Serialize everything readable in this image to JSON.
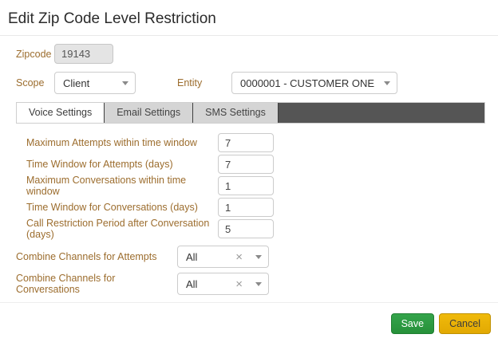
{
  "window": {
    "title": "Edit Zip Code Level Restriction"
  },
  "identity": {
    "zipcode": {
      "label": "Zipcode",
      "value": "19143"
    },
    "scope": {
      "label": "Scope",
      "value": "Client"
    },
    "entity": {
      "label": "Entity",
      "value": "0000001 - CUSTOMER ONE"
    }
  },
  "tabs": {
    "voice": {
      "label": "Voice Settings"
    },
    "email": {
      "label": "Email Settings"
    },
    "sms": {
      "label": "SMS Settings"
    }
  },
  "voice_settings": {
    "max_attempts": {
      "label": "Maximum Attempts within time window",
      "value": "7"
    },
    "attempts_window": {
      "label": "Time Window for Attempts (days)",
      "value": "7"
    },
    "max_conversations": {
      "label": "Maximum Conversations within time window",
      "value": "1"
    },
    "conversations_window": {
      "label": "Time Window for Conversations (days)",
      "value": "1"
    },
    "call_restriction_period": {
      "label": "Call Restriction Period after Conversation (days)",
      "value": "5"
    }
  },
  "combine_channels": {
    "attempts": {
      "label": "Combine Channels for Attempts",
      "value": "All"
    },
    "conversations": {
      "label": "Combine Channels for Conversations",
      "value": "All"
    }
  },
  "footer": {
    "save": "Save",
    "cancel": "Cancel"
  },
  "icons": {
    "clear": "×"
  },
  "colors": {
    "label_text": "#9c6d2e",
    "tab_strip": "#555555",
    "save_green": "#2d9b3f",
    "cancel_gold": "#eab307"
  }
}
